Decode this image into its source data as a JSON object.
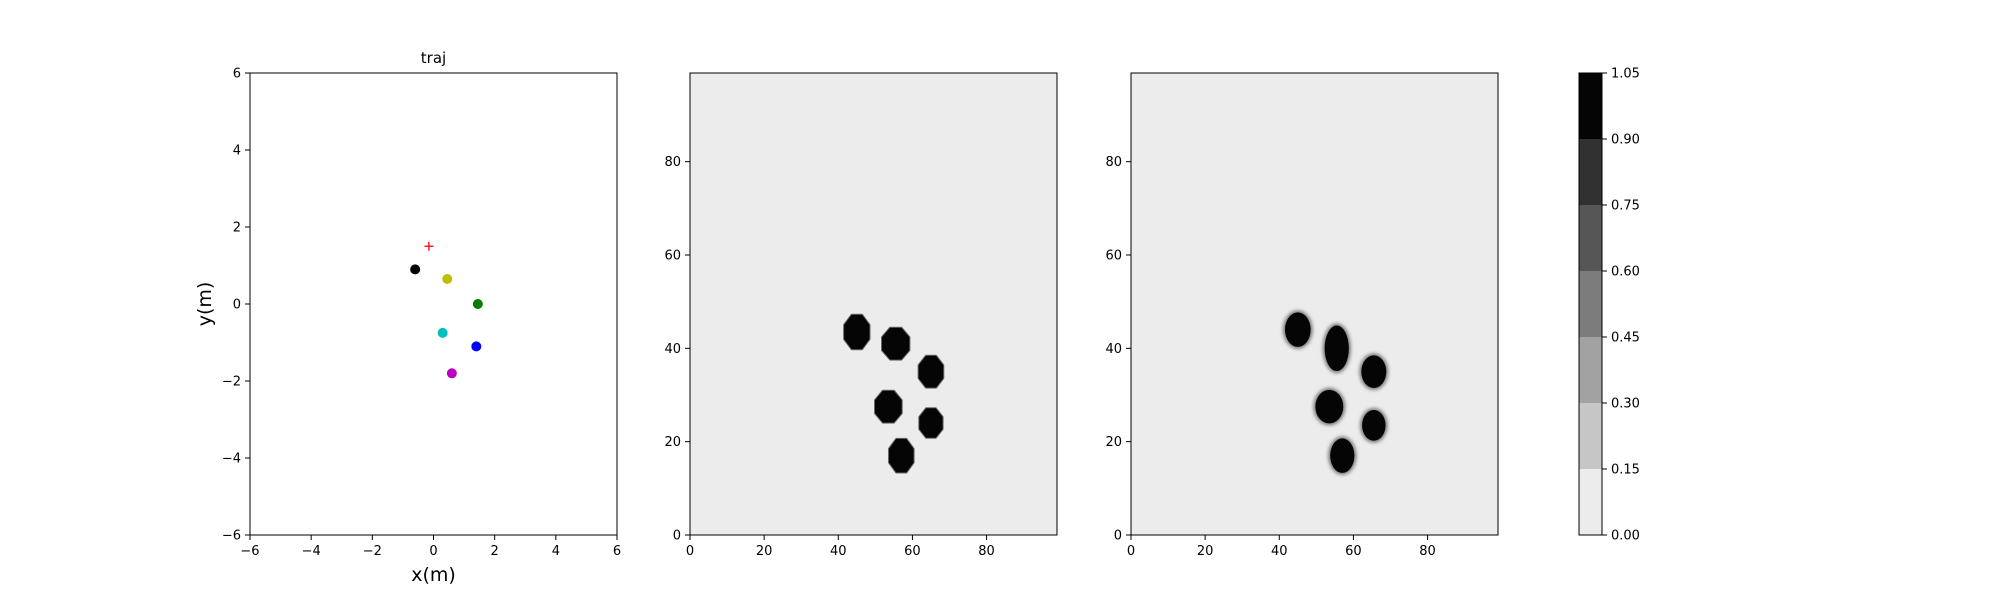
{
  "chart_data": [
    {
      "type": "scatter",
      "title": "traj",
      "xlabel": "x(m)",
      "ylabel": "y(m)",
      "xlim": [
        -6,
        6
      ],
      "ylim": [
        -6,
        6
      ],
      "xticks": [
        "−6",
        "−4",
        "−2",
        "0",
        "2",
        "4",
        "6"
      ],
      "yticks": [
        "−6",
        "−4",
        "−2",
        "0",
        "2",
        "4",
        "6"
      ],
      "grid": false,
      "points": [
        {
          "x": -0.6,
          "y": 0.9,
          "color": "#000000",
          "marker": "circle"
        },
        {
          "x": 0.45,
          "y": 0.65,
          "color": "#bfbf00",
          "marker": "circle"
        },
        {
          "x": 1.45,
          "y": 0.0,
          "color": "#008000",
          "marker": "circle"
        },
        {
          "x": 0.3,
          "y": -0.75,
          "color": "#00bfbf",
          "marker": "circle"
        },
        {
          "x": 1.4,
          "y": -1.1,
          "color": "#0000ff",
          "marker": "circle"
        },
        {
          "x": 0.6,
          "y": -1.8,
          "color": "#bf00bf",
          "marker": "circle"
        }
      ],
      "target": {
        "x": -0.15,
        "y": 1.5,
        "color": "#ff0000",
        "marker": "plus"
      }
    },
    {
      "type": "heatmap",
      "xlim": [
        0,
        99
      ],
      "ylim": [
        0,
        99
      ],
      "xticks": [
        "0",
        "20",
        "40",
        "60",
        "80"
      ],
      "yticks": [
        "0",
        "20",
        "40",
        "60",
        "80"
      ],
      "background_value": 0.0,
      "blobs": [
        {
          "x": 45,
          "y": 43.5,
          "rx": 3.7,
          "ry": 4.0,
          "value": 1.05,
          "shape": "octagon"
        },
        {
          "x": 55.5,
          "y": 41,
          "rx": 4.0,
          "ry": 3.7,
          "value": 1.05,
          "shape": "octagon"
        },
        {
          "x": 65,
          "y": 35,
          "rx": 3.6,
          "ry": 3.7,
          "value": 1.05,
          "shape": "octagon"
        },
        {
          "x": 53.5,
          "y": 27.5,
          "rx": 3.9,
          "ry": 3.7,
          "value": 1.05,
          "shape": "octagon"
        },
        {
          "x": 65,
          "y": 24,
          "rx": 3.4,
          "ry": 3.4,
          "value": 1.05,
          "shape": "octagon"
        },
        {
          "x": 57,
          "y": 17,
          "rx": 3.6,
          "ry": 3.9,
          "value": 1.05,
          "shape": "octagon"
        }
      ]
    },
    {
      "type": "heatmap",
      "xlim": [
        0,
        99
      ],
      "ylim": [
        0,
        99
      ],
      "xticks": [
        "0",
        "20",
        "40",
        "60",
        "80"
      ],
      "yticks": [
        "0",
        "20",
        "40",
        "60",
        "80"
      ],
      "background_value": 0.0,
      "blobs": [
        {
          "x": 45,
          "y": 44,
          "rx": 3.6,
          "ry": 3.8,
          "value": 1.05,
          "shape": "round"
        },
        {
          "x": 55.5,
          "y": 40,
          "rx": 3.4,
          "ry": 5.0,
          "value": 1.05,
          "shape": "round"
        },
        {
          "x": 65.5,
          "y": 35,
          "rx": 3.5,
          "ry": 3.6,
          "value": 1.05,
          "shape": "round"
        },
        {
          "x": 53.5,
          "y": 27.5,
          "rx": 3.9,
          "ry": 3.7,
          "value": 1.05,
          "shape": "round"
        },
        {
          "x": 65.5,
          "y": 23.5,
          "rx": 3.3,
          "ry": 3.4,
          "value": 1.05,
          "shape": "round"
        },
        {
          "x": 57,
          "y": 17,
          "rx": 3.4,
          "ry": 3.8,
          "value": 1.05,
          "shape": "round"
        }
      ]
    }
  ],
  "colorbar": {
    "ticks": [
      "0.00",
      "0.15",
      "0.30",
      "0.45",
      "0.60",
      "0.75",
      "0.90",
      "1.05"
    ],
    "levels": [
      0.0,
      0.15,
      0.3,
      0.45,
      0.6,
      0.75,
      0.9,
      1.05
    ],
    "colors": [
      "#ececec",
      "#c6c6c6",
      "#a2a2a2",
      "#7c7c7c",
      "#565656",
      "#313131",
      "#050505"
    ]
  }
}
